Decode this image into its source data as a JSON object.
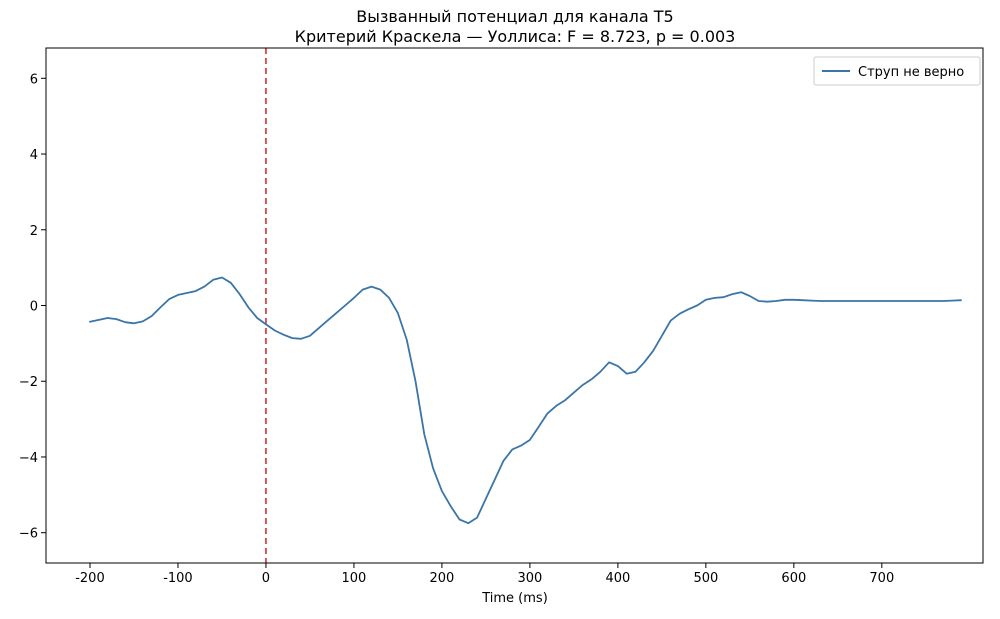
{
  "chart_data": {
    "type": "line",
    "title": "Вызванный потенциал для канала T5",
    "subtitle": "Критерий Краскела — Уоллиса: F = 8.723, p = 0.003",
    "xlabel": "Time (ms)",
    "ylabel": "",
    "xlim": [
      -250,
      815
    ],
    "ylim": [
      -6.8,
      6.8
    ],
    "xticks": [
      -200,
      -100,
      0,
      100,
      200,
      300,
      400,
      500,
      600,
      700
    ],
    "yticks": [
      -6,
      -4,
      -2,
      0,
      2,
      4,
      6
    ],
    "grid": false,
    "legend_position": "top-right",
    "series": [
      {
        "name": "Струп не верно",
        "color": "#3a75a8",
        "x": [
          -200,
          -190,
          -180,
          -170,
          -160,
          -150,
          -140,
          -130,
          -120,
          -110,
          -100,
          -90,
          -80,
          -70,
          -60,
          -50,
          -40,
          -30,
          -20,
          -10,
          0,
          10,
          20,
          30,
          40,
          50,
          60,
          70,
          80,
          90,
          100,
          110,
          120,
          130,
          140,
          150,
          160,
          170,
          180,
          190,
          200,
          210,
          220,
          230,
          240,
          250,
          260,
          270,
          280,
          290,
          300,
          310,
          320,
          330,
          340,
          350,
          360,
          370,
          380,
          390,
          400,
          410,
          420,
          430,
          440,
          450,
          460,
          470,
          480,
          490,
          500,
          510,
          520,
          530,
          540,
          550,
          560,
          570,
          580,
          590,
          600,
          610,
          620,
          630,
          640,
          650,
          660,
          670,
          680,
          690,
          700,
          710,
          720,
          730,
          740,
          750,
          760,
          770,
          780,
          790
        ],
        "y": [
          -0.43,
          -0.38,
          -0.33,
          -0.36,
          -0.44,
          -0.47,
          -0.42,
          -0.28,
          -0.05,
          0.17,
          0.28,
          0.33,
          0.38,
          0.5,
          0.68,
          0.74,
          0.6,
          0.3,
          -0.05,
          -0.33,
          -0.5,
          -0.66,
          -0.77,
          -0.86,
          -0.88,
          -0.8,
          -0.6,
          -0.4,
          -0.2,
          0.0,
          0.2,
          0.42,
          0.5,
          0.42,
          0.2,
          -0.2,
          -0.9,
          -2.0,
          -3.4,
          -4.3,
          -4.9,
          -5.3,
          -5.65,
          -5.75,
          -5.6,
          -5.1,
          -4.6,
          -4.1,
          -3.8,
          -3.7,
          -3.55,
          -3.2,
          -2.85,
          -2.65,
          -2.5,
          -2.3,
          -2.1,
          -1.95,
          -1.75,
          -1.5,
          -1.6,
          -1.8,
          -1.75,
          -1.5,
          -1.2,
          -0.8,
          -0.4,
          -0.22,
          -0.1,
          0.0,
          0.15,
          0.2,
          0.22,
          0.3,
          0.35,
          0.25,
          0.12,
          0.1,
          0.12,
          0.15,
          0.15,
          0.14,
          0.13,
          0.12,
          0.12,
          0.12,
          0.12,
          0.12,
          0.12,
          0.12,
          0.12,
          0.12,
          0.12,
          0.12,
          0.12,
          0.12,
          0.12,
          0.12,
          0.13,
          0.14
        ]
      }
    ],
    "annotations": [
      {
        "type": "vline",
        "x": 0,
        "style": "dashed",
        "color": "#d62f2f"
      }
    ]
  }
}
